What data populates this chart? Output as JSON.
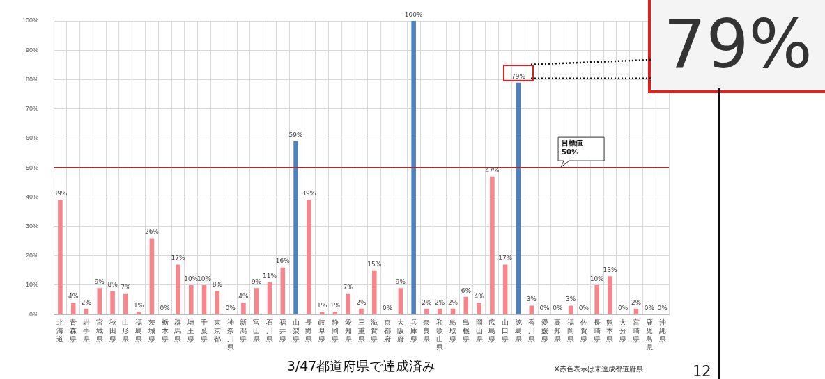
{
  "chart_data": {
    "type": "bar",
    "categories": [
      "北海道",
      "青森県",
      "岩手県",
      "宮城県",
      "秋田県",
      "山形県",
      "福島県",
      "茨城県",
      "栃木県",
      "群馬県",
      "埼玉県",
      "千葉県",
      "東京都",
      "神奈川県",
      "新潟県",
      "富山県",
      "石川県",
      "福井県",
      "山梨県",
      "長野県",
      "岐阜県",
      "静岡県",
      "愛知県",
      "三重県",
      "滋賀県",
      "京都府",
      "大阪府",
      "兵庫県",
      "奈良県",
      "和歌山県",
      "鳥取県",
      "島根県",
      "岡山県",
      "広島県",
      "山口県",
      "徳島県",
      "香川県",
      "愛媛県",
      "高知県",
      "福岡県",
      "佐賀県",
      "長崎県",
      "熊本県",
      "大分県",
      "宮崎県",
      "鹿児島県",
      "沖縄県"
    ],
    "values": [
      39,
      4,
      2,
      9,
      8,
      7,
      1,
      26,
      0,
      17,
      10,
      10,
      8,
      0,
      4,
      9,
      11,
      16,
      59,
      39,
      1,
      1,
      7,
      2,
      15,
      0,
      9,
      100,
      2,
      2,
      2,
      6,
      4,
      47,
      17,
      79,
      3,
      0,
      0,
      3,
      0,
      10,
      13,
      0,
      2,
      0,
      0
    ],
    "value_labels": [
      "39%",
      "4%",
      "2%",
      "9%",
      "8%",
      "7%",
      "1%",
      "26%",
      "0%",
      "17%",
      "10%",
      "10%",
      "8%",
      "0%",
      "4%",
      "9%",
      "11%",
      "16%",
      "59%",
      "39%",
      "1%",
      "1%",
      "7%",
      "2%",
      "15%",
      "0%",
      "9%",
      "100%",
      "2%",
      "2%",
      "2%",
      "6%",
      "4%",
      "47%",
      "17%",
      "79%",
      "3%",
      "0%",
      "0%",
      "3%",
      "0%",
      "10%",
      "13%",
      "0%",
      "2%",
      "0%",
      "0%"
    ],
    "colors": [
      "#f4868c",
      "#f4868c",
      "#f4868c",
      "#f4868c",
      "#f4868c",
      "#f4868c",
      "#f4868c",
      "#f4868c",
      "#f4868c",
      "#f4868c",
      "#f4868c",
      "#f4868c",
      "#f4868c",
      "#f4868c",
      "#f4868c",
      "#f4868c",
      "#f4868c",
      "#f4868c",
      "#4f81bd",
      "#f4868c",
      "#f4868c",
      "#f4868c",
      "#f4868c",
      "#f4868c",
      "#f4868c",
      "#f4868c",
      "#f4868c",
      "#4f81bd",
      "#f4868c",
      "#f4868c",
      "#f4868c",
      "#f4868c",
      "#f4868c",
      "#f4868c",
      "#f4868c",
      "#4f81bd",
      "#f4868c",
      "#f4868c",
      "#f4868c",
      "#f4868c",
      "#f4868c",
      "#f4868c",
      "#f4868c",
      "#f4868c",
      "#f4868c",
      "#f4868c",
      "#f4868c"
    ],
    "ylim": [
      0,
      100
    ],
    "yticks": [
      {
        "value": 0,
        "label": "0%"
      },
      {
        "value": 10,
        "label": "10%"
      },
      {
        "value": 20,
        "label": "20%"
      },
      {
        "value": 30,
        "label": "30%"
      },
      {
        "value": 40,
        "label": "40%"
      },
      {
        "value": 50,
        "label": "50%"
      },
      {
        "value": 60,
        "label": "60%"
      },
      {
        "value": 70,
        "label": "70%"
      },
      {
        "value": 80,
        "label": "80%"
      },
      {
        "value": 90,
        "label": "90%"
      },
      {
        "value": 100,
        "label": "100%"
      }
    ],
    "grid": true,
    "xlabel": "3/47都道府県で達成済み",
    "ref_lines": [
      {
        "axis": "y",
        "value": 50,
        "label": "目標値\n50%",
        "color": "#a0302c"
      }
    ],
    "annotations": [
      {
        "text": "79%",
        "x": "徳島県",
        "y": 79
      },
      "※赤色表示は未達成都道府県",
      "12"
    ]
  }
}
